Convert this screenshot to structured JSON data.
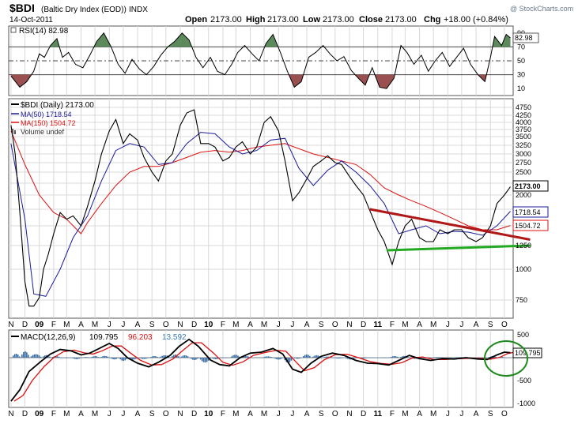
{
  "header": {
    "symbol": "$BDI",
    "name": "(Baltic Dry Index (EOD))",
    "exchange": "INDX",
    "date": "14-Oct-2011",
    "watermark": "@ StockCharts.com",
    "open_label": "Open",
    "open": "2173.00",
    "high_label": "High",
    "high": "2173.00",
    "low_label": "Low",
    "low": "2173.00",
    "close_label": "Close",
    "close": "2173.00",
    "chg_label": "Chg",
    "chg": "+18.00 (+0.84%)"
  },
  "colors": {
    "price": "#000000",
    "ma50": "#1a1a9c",
    "ma150": "#dd1111",
    "trend_red": "#b01818",
    "trend_green": "#22aa22",
    "rsi_over": "#5c8a5c",
    "rsi_under": "#9a5050",
    "macd_hist": "#3a6ea5",
    "macd_line": "#000000",
    "macd_signal": "#dd1111",
    "highlight_circle": "#1e8a1e"
  },
  "rsi_panel": {
    "label": "RSI(14) 82.98",
    "value_badge": "82.98",
    "tick_labels": [
      "90",
      "70",
      "50",
      "30",
      "10"
    ]
  },
  "price_panel": {
    "legend": [
      {
        "label": "$BDI (Daily) 2173.00"
      },
      {
        "label": "MA(50) 1718.54"
      },
      {
        "label": "MA(150) 1504.72"
      },
      {
        "label": "Volume undef"
      }
    ],
    "tick_labels": [
      "4750",
      "4250",
      "4000",
      "3750",
      "3500",
      "3250",
      "3000",
      "2750",
      "2500",
      "2250",
      "2000",
      "1750",
      "1500",
      "1250",
      "1000",
      "750"
    ],
    "badges": {
      "close": "2173.00",
      "ma50": "1718.54",
      "ma150": "1504.72"
    }
  },
  "macd_panel": {
    "label_prefix": "MACD(12,26,9)",
    "macd_value": "109.795",
    "signal_value": "96.203",
    "hist_value": "13.592",
    "tick_labels": [
      "500",
      "-500",
      "-1000"
    ],
    "badge": "109.795"
  },
  "x_axis": {
    "months": [
      "N",
      "D",
      "09",
      "F",
      "M",
      "A",
      "M",
      "J",
      "J",
      "A",
      "S",
      "O",
      "N",
      "D",
      "10",
      "F",
      "M",
      "A",
      "M",
      "J",
      "J",
      "A",
      "S",
      "O",
      "N",
      "D",
      "11",
      "F",
      "M",
      "A",
      "M",
      "J",
      "J",
      "A",
      "S",
      "O"
    ]
  },
  "chart_data": [
    {
      "type": "line",
      "title": "RSI(14)",
      "series": [
        {
          "name": "RSI(14)",
          "last": 82.98
        }
      ],
      "y_ticks": [
        90,
        70,
        50,
        30,
        10
      ],
      "ylim": [
        0,
        100
      ],
      "reference_lines": [
        70,
        50,
        30
      ]
    },
    {
      "type": "line",
      "title": "$BDI (Daily)",
      "x_range": [
        "Nov 2008",
        "Oct 2011"
      ],
      "ylim": [
        500,
        5000
      ],
      "y_ticks": [
        4750,
        4250,
        4000,
        3750,
        3500,
        3250,
        3000,
        2750,
        2500,
        2250,
        2000,
        1750,
        1500,
        1250,
        1000,
        750
      ],
      "series": [
        {
          "name": "$BDI (Daily)",
          "last": 2173.0,
          "points": [
            [
              "2008-11-01",
              3900
            ],
            [
              "2008-11-10",
              3000
            ],
            [
              "2008-11-20",
              1700
            ],
            [
              "2008-12-01",
              900
            ],
            [
              "2008-12-10",
              700
            ],
            [
              "2008-12-20",
              700
            ],
            [
              "2009-01-01",
              770
            ],
            [
              "2009-01-10",
              1000
            ],
            [
              "2009-01-20",
              1150
            ],
            [
              "2009-02-01",
              1400
            ],
            [
              "2009-02-15",
              1700
            ],
            [
              "2009-03-01",
              1600
            ],
            [
              "2009-03-15",
              1650
            ],
            [
              "2009-04-01",
              1500
            ],
            [
              "2009-04-15",
              1800
            ],
            [
              "2009-05-01",
              2300
            ],
            [
              "2009-05-15",
              3000
            ],
            [
              "2009-06-01",
              3700
            ],
            [
              "2009-06-15",
              4100
            ],
            [
              "2009-07-01",
              3300
            ],
            [
              "2009-07-15",
              3600
            ],
            [
              "2009-08-01",
              3400
            ],
            [
              "2009-08-15",
              2900
            ],
            [
              "2009-09-01",
              2500
            ],
            [
              "2009-09-15",
              2300
            ],
            [
              "2009-10-01",
              2800
            ],
            [
              "2009-10-15",
              3000
            ],
            [
              "2009-11-01",
              3900
            ],
            [
              "2009-11-15",
              4400
            ],
            [
              "2009-12-01",
              4600
            ],
            [
              "2009-12-15",
              3300
            ],
            [
              "2010-01-01",
              3300
            ],
            [
              "2010-01-15",
              3200
            ],
            [
              "2010-02-01",
              2800
            ],
            [
              "2010-02-15",
              2900
            ],
            [
              "2010-03-01",
              3200
            ],
            [
              "2010-03-15",
              3350
            ],
            [
              "2010-04-01",
              3000
            ],
            [
              "2010-04-15",
              3200
            ],
            [
              "2010-05-01",
              4000
            ],
            [
              "2010-05-15",
              4200
            ],
            [
              "2010-06-01",
              3700
            ],
            [
              "2010-06-15",
              2800
            ],
            [
              "2010-07-01",
              1900
            ],
            [
              "2010-07-15",
              2050
            ],
            [
              "2010-08-01",
              2350
            ],
            [
              "2010-08-15",
              2650
            ],
            [
              "2010-09-01",
              2800
            ],
            [
              "2010-09-15",
              2950
            ],
            [
              "2010-10-01",
              2750
            ],
            [
              "2010-10-15",
              2700
            ],
            [
              "2010-11-01",
              2400
            ],
            [
              "2010-11-15",
              2200
            ],
            [
              "2010-12-01",
              2000
            ],
            [
              "2011-01-01",
              1450
            ],
            [
              "2011-01-15",
              1300
            ],
            [
              "2011-02-01",
              1050
            ],
            [
              "2011-02-15",
              1300
            ],
            [
              "2011-03-01",
              1500
            ],
            [
              "2011-03-15",
              1600
            ],
            [
              "2011-04-01",
              1350
            ],
            [
              "2011-04-15",
              1300
            ],
            [
              "2011-05-01",
              1300
            ],
            [
              "2011-05-15",
              1450
            ],
            [
              "2011-06-01",
              1400
            ],
            [
              "2011-06-15",
              1450
            ],
            [
              "2011-07-01",
              1450
            ],
            [
              "2011-07-15",
              1350
            ],
            [
              "2011-08-01",
              1300
            ],
            [
              "2011-08-15",
              1350
            ],
            [
              "2011-09-01",
              1500
            ],
            [
              "2011-09-15",
              1850
            ],
            [
              "2011-10-01",
              2000
            ],
            [
              "2011-10-14",
              2173
            ]
          ]
        },
        {
          "name": "MA(50)",
          "last": 1718.54,
          "points": [
            [
              "2008-11-01",
              3300
            ],
            [
              "2008-12-01",
              1600
            ],
            [
              "2008-12-20",
              800
            ],
            [
              "2009-01-15",
              780
            ],
            [
              "2009-02-15",
              1000
            ],
            [
              "2009-03-15",
              1350
            ],
            [
              "2009-04-15",
              1650
            ],
            [
              "2009-05-15",
              2300
            ],
            [
              "2009-06-15",
              3100
            ],
            [
              "2009-07-15",
              3300
            ],
            [
              "2009-08-15",
              3200
            ],
            [
              "2009-09-15",
              2700
            ],
            [
              "2009-10-15",
              2750
            ],
            [
              "2009-11-15",
              3300
            ],
            [
              "2009-12-15",
              3650
            ],
            [
              "2010-01-15",
              3600
            ],
            [
              "2010-02-15",
              3200
            ],
            [
              "2010-03-15",
              3000
            ],
            [
              "2010-04-15",
              3100
            ],
            [
              "2010-05-15",
              3400
            ],
            [
              "2010-06-15",
              3450
            ],
            [
              "2010-07-15",
              2600
            ],
            [
              "2010-08-15",
              2200
            ],
            [
              "2010-09-15",
              2550
            ],
            [
              "2010-10-15",
              2800
            ],
            [
              "2010-11-15",
              2500
            ],
            [
              "2010-12-15",
              2200
            ],
            [
              "2011-01-15",
              1850
            ],
            [
              "2011-02-15",
              1400
            ],
            [
              "2011-03-15",
              1450
            ],
            [
              "2011-04-15",
              1500
            ],
            [
              "2011-05-15",
              1400
            ],
            [
              "2011-06-15",
              1430
            ],
            [
              "2011-07-15",
              1420
            ],
            [
              "2011-08-15",
              1380
            ],
            [
              "2011-09-15",
              1500
            ],
            [
              "2011-10-14",
              1718.54
            ]
          ]
        },
        {
          "name": "MA(150)",
          "last": 1504.72,
          "points": [
            [
              "2008-11-01",
              3700
            ],
            [
              "2008-12-01",
              2700
            ],
            [
              "2009-01-01",
              2000
            ],
            [
              "2009-02-01",
              1700
            ],
            [
              "2009-03-01",
              1600
            ],
            [
              "2009-04-01",
              1400
            ],
            [
              "2009-04-15",
              1550
            ],
            [
              "2009-05-15",
              1850
            ],
            [
              "2009-06-15",
              2200
            ],
            [
              "2009-07-15",
              2500
            ],
            [
              "2009-08-15",
              2650
            ],
            [
              "2009-09-15",
              2650
            ],
            [
              "2009-10-15",
              2750
            ],
            [
              "2009-11-15",
              2900
            ],
            [
              "2009-12-15",
              3050
            ],
            [
              "2010-01-15",
              3100
            ],
            [
              "2010-02-15",
              3050
            ],
            [
              "2010-03-15",
              3100
            ],
            [
              "2010-04-15",
              3200
            ],
            [
              "2010-05-15",
              3250
            ],
            [
              "2010-06-15",
              3300
            ],
            [
              "2010-07-15",
              3150
            ],
            [
              "2010-08-15",
              3000
            ],
            [
              "2010-09-15",
              2900
            ],
            [
              "2010-10-15",
              2800
            ],
            [
              "2010-11-15",
              2700
            ],
            [
              "2010-12-15",
              2450
            ],
            [
              "2011-01-15",
              2150
            ],
            [
              "2011-02-15",
              2000
            ],
            [
              "2011-03-15",
              1900
            ],
            [
              "2011-04-15",
              1800
            ],
            [
              "2011-05-15",
              1700
            ],
            [
              "2011-06-15",
              1600
            ],
            [
              "2011-07-15",
              1500
            ],
            [
              "2011-08-15",
              1450
            ],
            [
              "2011-09-15",
              1450
            ],
            [
              "2011-10-14",
              1504.72
            ]
          ]
        }
      ],
      "trendlines": [
        {
          "color": "red",
          "from": [
            "2010-12-15",
            1750
          ],
          "to": [
            "2011-10-14",
            1325
          ]
        },
        {
          "color": "green",
          "from": [
            "2011-01-20",
            1200
          ],
          "to": [
            "2011-10-14",
            1250
          ]
        }
      ]
    },
    {
      "type": "line",
      "title": "MACD(12,26,9)",
      "ylim": [
        -1100,
        600
      ],
      "y_ticks": [
        500,
        -500,
        -1000
      ],
      "series": [
        {
          "name": "MACD",
          "last": 109.795
        },
        {
          "name": "Signal",
          "last": 96.203
        },
        {
          "name": "Histogram",
          "last": 13.592
        }
      ]
    }
  ]
}
